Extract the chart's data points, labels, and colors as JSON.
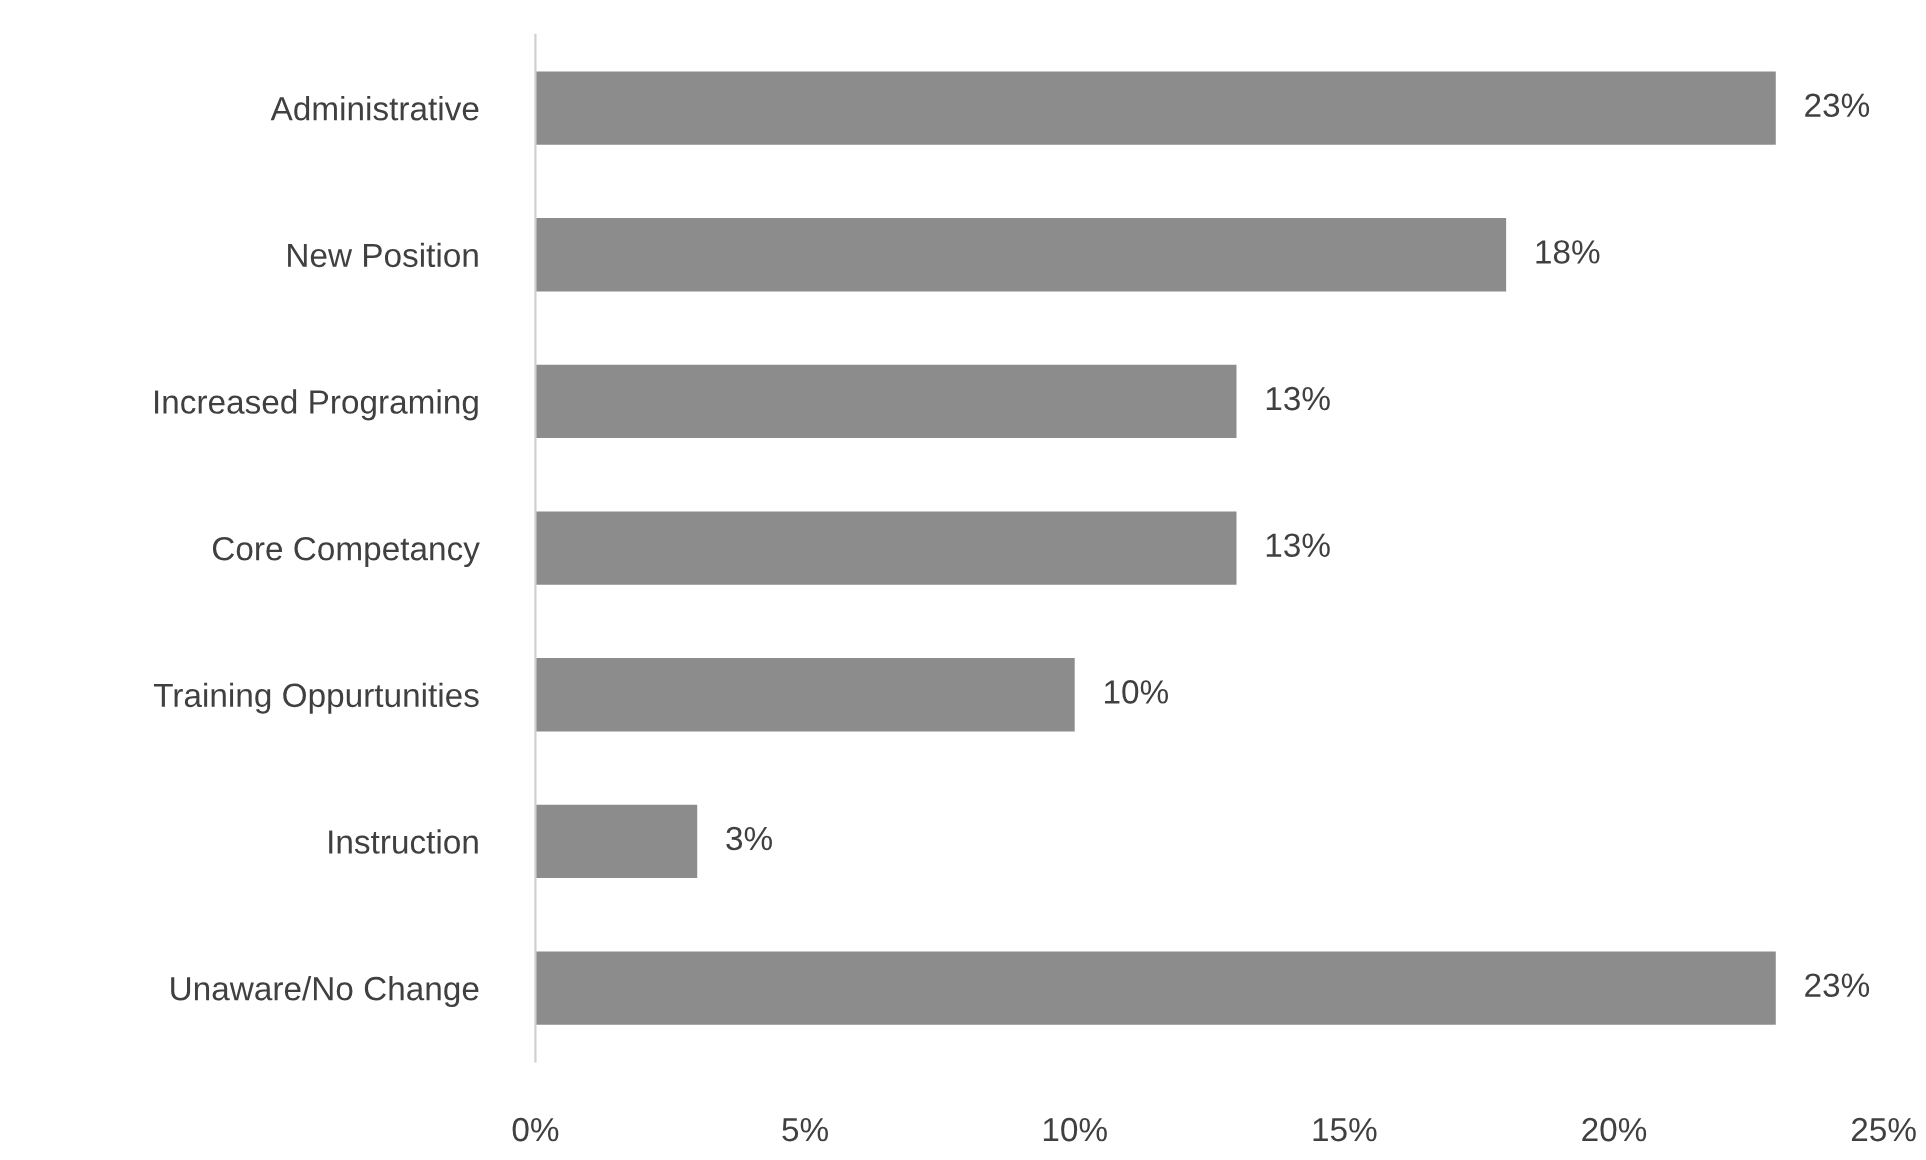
{
  "chart_data": {
    "type": "bar",
    "orientation": "horizontal",
    "categories": [
      "Administrative",
      "New Position",
      "Increased Programing",
      "Core Competancy",
      "Training Oppurtunities",
      "Instruction",
      "Unaware/No Change"
    ],
    "values": [
      23,
      18,
      13,
      13,
      10,
      3,
      23
    ],
    "value_labels": [
      "23%",
      "18%",
      "13%",
      "13%",
      "10%",
      "3%",
      "23%"
    ],
    "color": "#8c8c8c",
    "xlim": [
      0,
      25
    ],
    "xticks": [
      {
        "value": 0,
        "label": "0%"
      },
      {
        "value": 5,
        "label": "5%"
      },
      {
        "value": 10,
        "label": "10%"
      },
      {
        "value": 15,
        "label": "15%"
      },
      {
        "value": 20,
        "label": "20%"
      },
      {
        "value": 25,
        "label": "25%"
      }
    ],
    "grid": false,
    "legend": false
  }
}
